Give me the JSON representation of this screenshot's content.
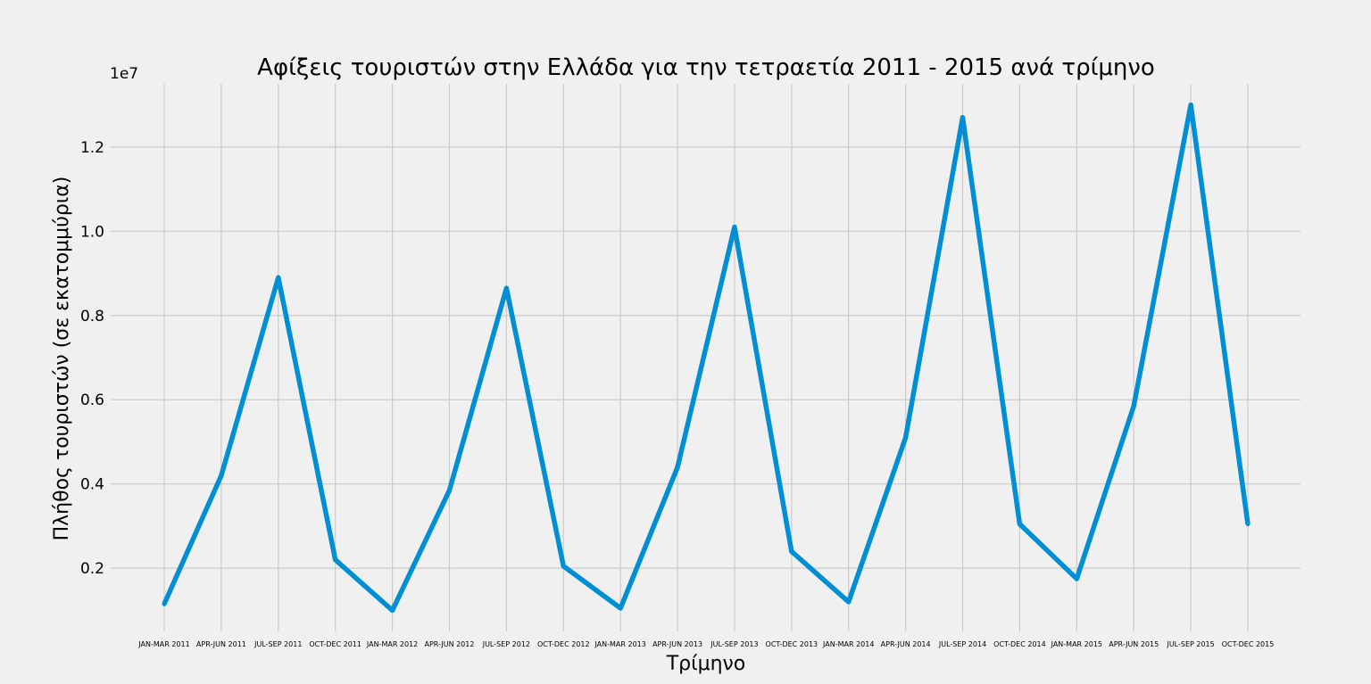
{
  "chart_data": {
    "type": "line",
    "title": "Αφίξεις τουριστών στην Ελλάδα για την τετραετία 2011 - 2015 ανά τρίμηνο",
    "xlabel": "Τρίμηνο",
    "ylabel": "Πλήθος τουριστών (σε εκατομμύρια)",
    "y_offset_label": "1e7",
    "ylim": [
      0.05,
      1.35
    ],
    "yticks": [
      0.2,
      0.4,
      0.6,
      0.8,
      1.0,
      1.2
    ],
    "ytick_labels": [
      "0.2",
      "0.4",
      "0.6",
      "0.8",
      "1.0",
      "1.2"
    ],
    "grid": true,
    "line_color": "#008fd5",
    "categories": [
      "JAN-MAR 2011",
      "APR-JUN 2011",
      "JUL-SEP 2011",
      "OCT-DEC 2011",
      "JAN-MAR 2012",
      "APR-JUN 2012",
      "JUL-SEP 2012",
      "OCT-DEC 2012",
      "JAN-MAR 2013",
      "APR-JUN 2013",
      "JUL-SEP 2013",
      "OCT-DEC 2013",
      "JAN-MAR 2014",
      "APR-JUN 2014",
      "JUL-SEP 2014",
      "OCT-DEC 2014",
      "JAN-MAR 2015",
      "APR-JUN 2015",
      "JUL-SEP 2015",
      "OCT-DEC 2015"
    ],
    "values": [
      0.115,
      0.42,
      0.89,
      0.22,
      0.1,
      0.385,
      0.865,
      0.205,
      0.105,
      0.44,
      1.01,
      0.24,
      0.12,
      0.51,
      1.27,
      0.305,
      0.175,
      0.585,
      1.3,
      0.305
    ]
  }
}
